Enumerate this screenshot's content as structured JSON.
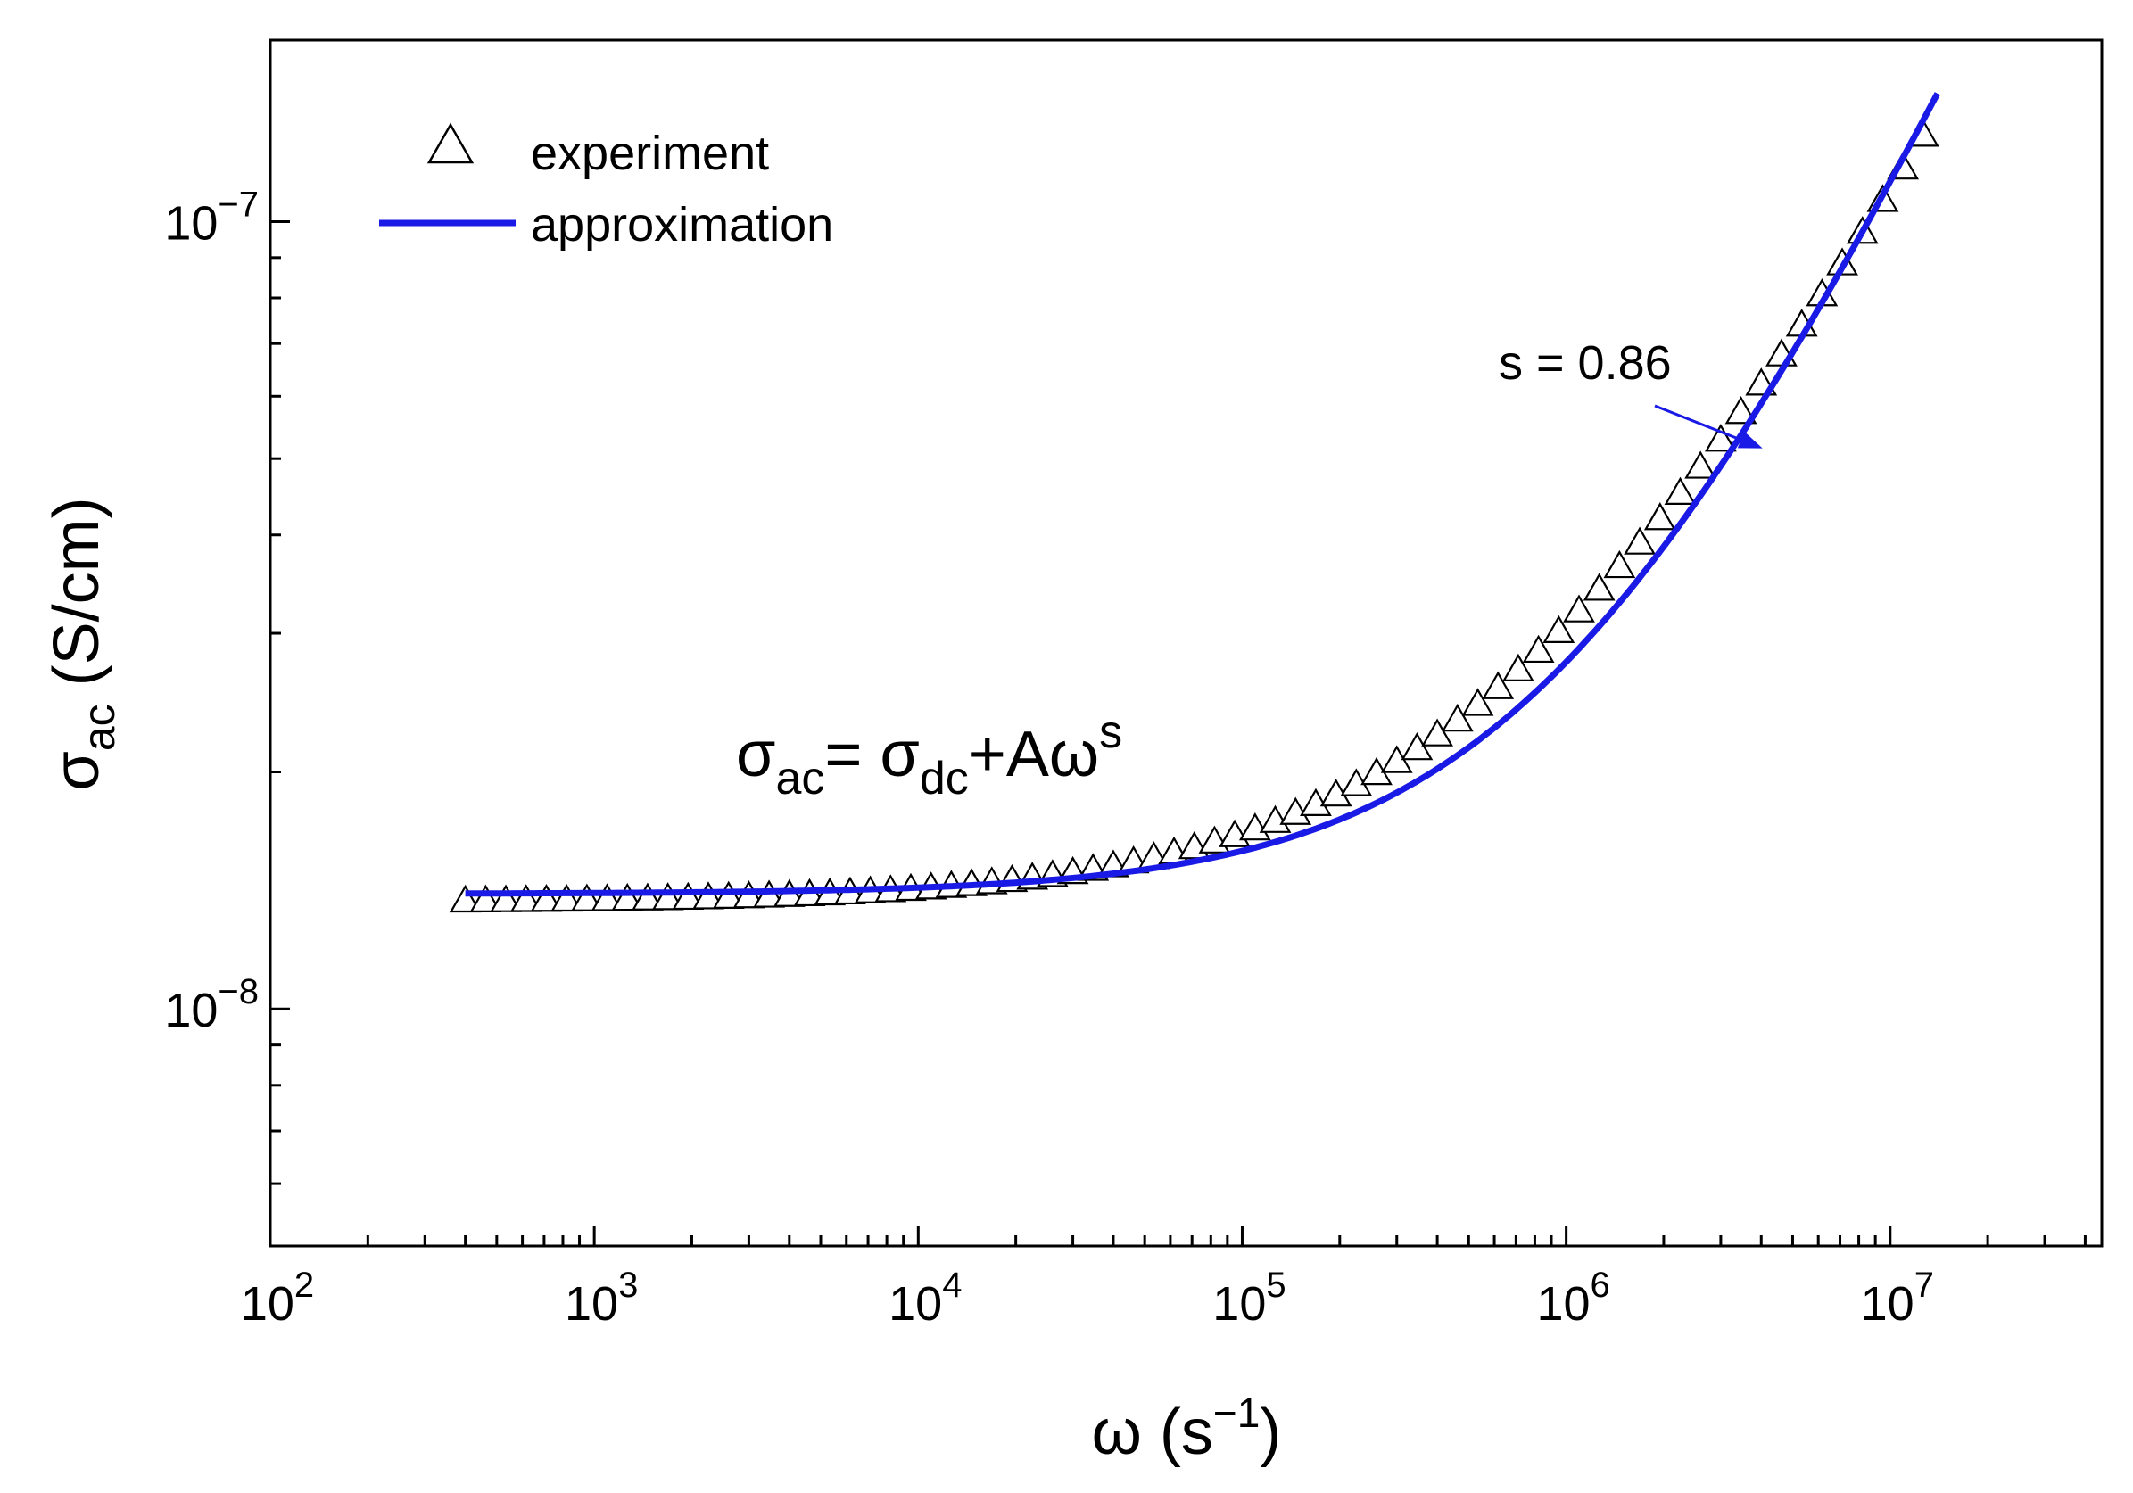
{
  "chart_data": {
    "type": "scatter",
    "title": "",
    "xlabel": {
      "base": "ω (s",
      "sup": "−1",
      "tail": ")"
    },
    "ylabel": {
      "base": "σ",
      "sub": "ac",
      "tail": " (S/cm)"
    },
    "x_scale": "log",
    "y_scale": "log",
    "xlim": [
      100,
      45000000
    ],
    "ylim": [
      5e-09,
      1.7e-07
    ],
    "grid": false,
    "legend_position": "top-left",
    "x_ticks": [
      {
        "value": 100,
        "base": "10",
        "exp": "2"
      },
      {
        "value": 1000,
        "base": "10",
        "exp": "3"
      },
      {
        "value": 10000,
        "base": "10",
        "exp": "4"
      },
      {
        "value": 100000,
        "base": "10",
        "exp": "5"
      },
      {
        "value": 1000000,
        "base": "10",
        "exp": "6"
      },
      {
        "value": 10000000,
        "base": "10",
        "exp": "7"
      }
    ],
    "y_ticks": [
      {
        "value": 1e-08,
        "base": "10",
        "exp": "−8"
      },
      {
        "value": 1e-07,
        "base": "10",
        "exp": "−7"
      }
    ],
    "series": [
      {
        "name": "experiment",
        "marker": "open-triangle",
        "color": "#000000",
        "omega_min": 400,
        "omega_max": 14000000,
        "points_per_decade": 16,
        "model": {
          "sigma_dc": 1.36e-08,
          "A": 5.4e-13,
          "s": 0.75
        }
      },
      {
        "name": "approximation",
        "style": "line",
        "color": "#1a1ae6",
        "omega_min": 400,
        "omega_max": 14000000,
        "model": {
          "sigma_dc": 1.4e-08,
          "A": 9.4e-14,
          "s": 0.86
        }
      }
    ],
    "legend": [
      {
        "label": "experiment"
      },
      {
        "label": "approximation"
      }
    ],
    "annotations": {
      "slope_label": "s = 0.86",
      "arrow_target": {
        "omega": 4300000,
        "sigma": 5.1e-08
      },
      "arrow_color": "#1a1ae6",
      "equation": {
        "s1": "σ",
        "sub1": "ac",
        "s2": "= σ",
        "sub2": "dc",
        "s3": "+Aω",
        "sup3": "s"
      }
    }
  }
}
